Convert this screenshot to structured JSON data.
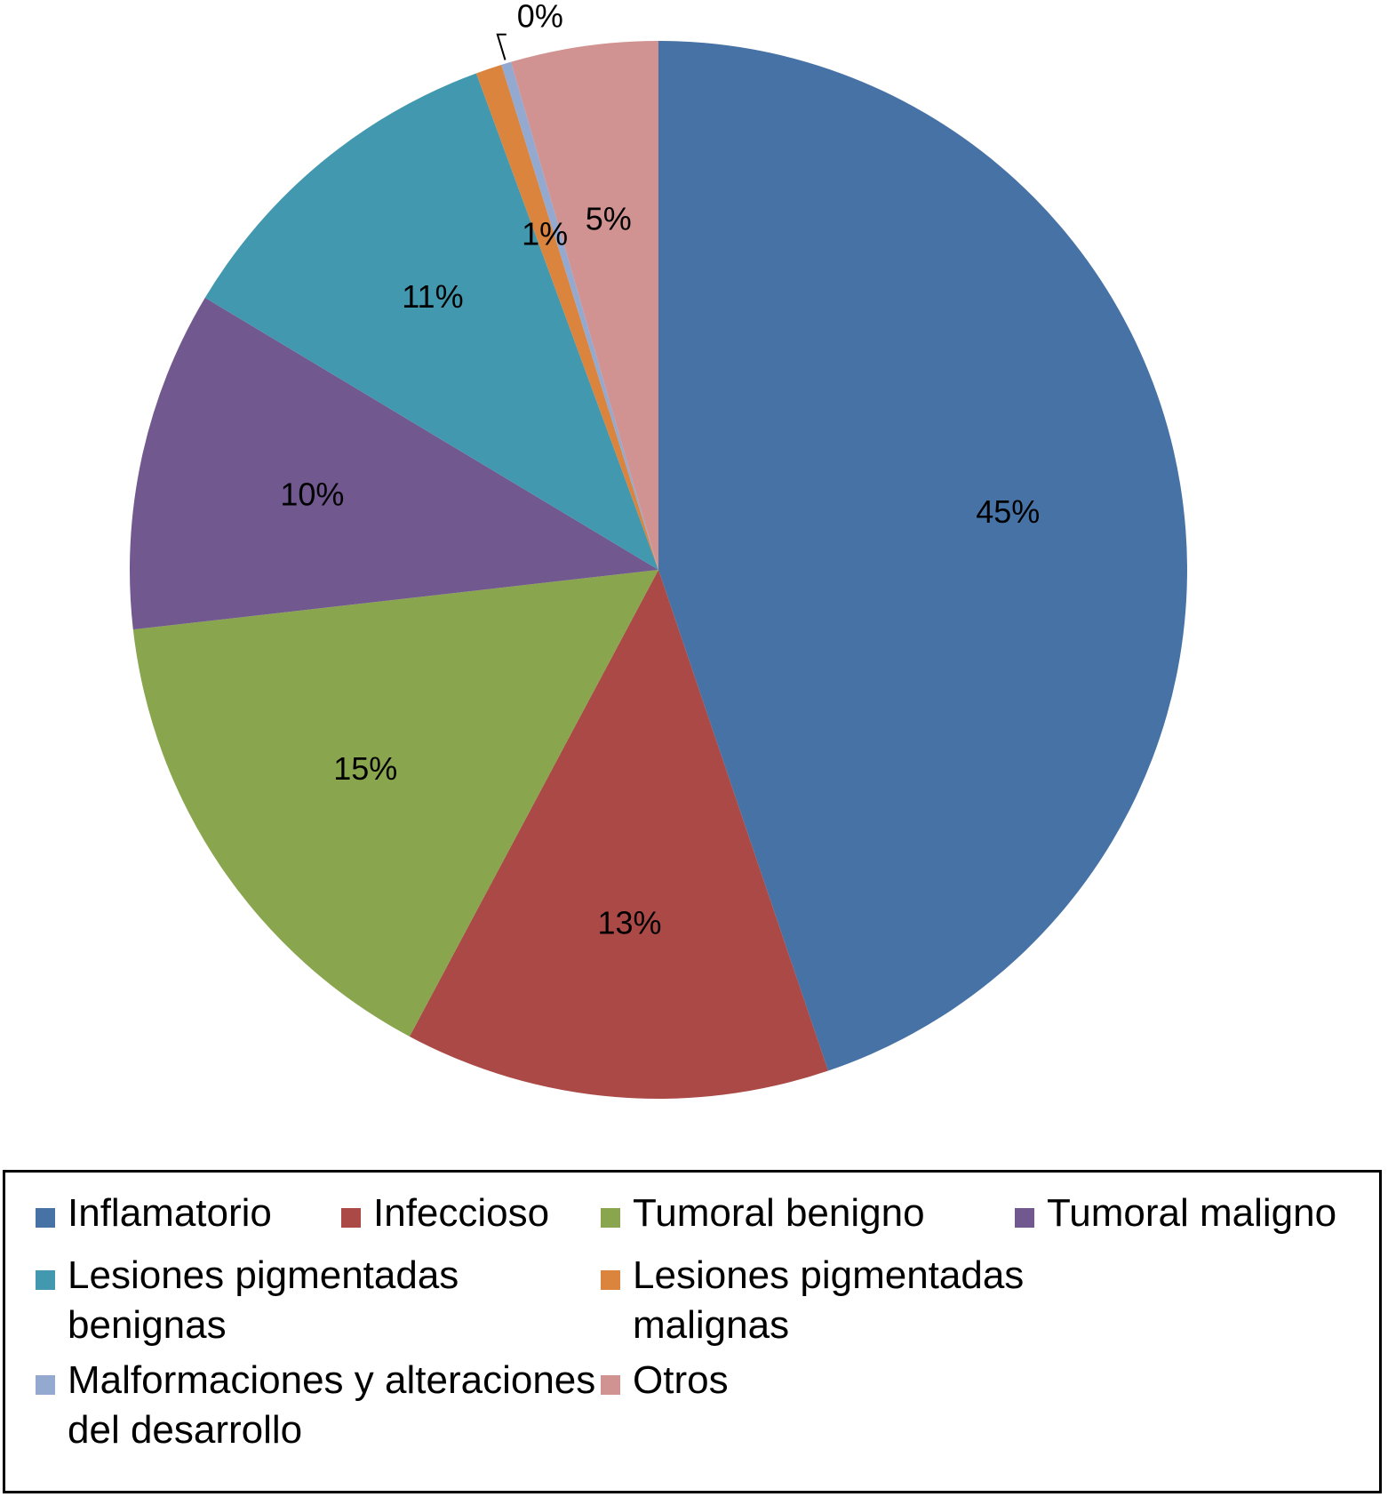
{
  "chart_data": {
    "type": "pie",
    "start": "12 o'clock",
    "direction": "clockwise",
    "slices": [
      {
        "name": "Inflamatorio",
        "label": "45%",
        "value": 44.8,
        "color": "#4672A6"
      },
      {
        "name": "Infeccioso",
        "label": "13%",
        "value": 13.0,
        "color": "#AA4946"
      },
      {
        "name": "Tumoral benigno",
        "label": "15%",
        "value": 15.4,
        "color": "#89A54E"
      },
      {
        "name": "Tumoral maligno",
        "label": "10%",
        "value": 10.4,
        "color": "#71588F"
      },
      {
        "name": "Lesiones pigmentadas benignas",
        "label": "11%",
        "value": 10.8,
        "color": "#4198AF"
      },
      {
        "name": "Lesiones pigmentadas malignas",
        "label": "1%",
        "value": 0.8,
        "color": "#DB843D"
      },
      {
        "name": "Malformaciones y alteraciones del desarrollo",
        "label": "0%",
        "value": 0.3,
        "color": "#93A9CF"
      },
      {
        "name": "Otros",
        "label": "5%",
        "value": 4.5,
        "color": "#D19392"
      }
    ],
    "legend_position": "bottom"
  }
}
